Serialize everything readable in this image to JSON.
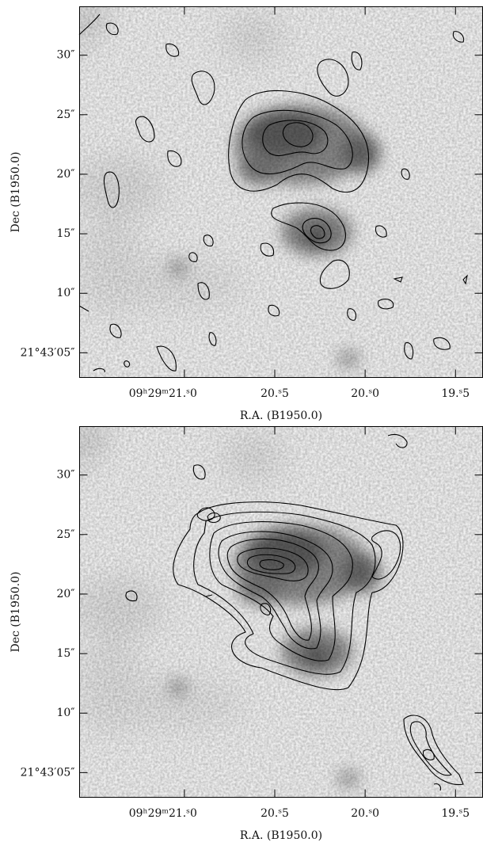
{
  "chart_data": [
    {
      "type": "image",
      "xlabel": "R.A. (B1950.0)",
      "ylabel": "Dec (B1950.0)",
      "xlim": [
        21.58,
        19.35
      ],
      "ylim": [
        2.93,
        34.07
      ],
      "xticks": [
        {
          "value": 21.0,
          "label": "09ʰ29ᵐ21.ˢ0"
        },
        {
          "value": 20.5,
          "label": "20.ˢ5"
        },
        {
          "value": 20.0,
          "label": "20.ˢ0"
        },
        {
          "value": 19.5,
          "label": "19.ˢ5"
        }
      ],
      "yticks": [
        {
          "value": 5,
          "label": "21°43′05″"
        },
        {
          "value": 10,
          "label": "10″"
        },
        {
          "value": 15,
          "label": "15″"
        },
        {
          "value": 20,
          "label": "20″"
        },
        {
          "value": 25,
          "label": "25″"
        },
        {
          "value": 30,
          "label": "30″"
        }
      ]
    },
    {
      "type": "image",
      "xlabel": "R.A. (B1950.0)",
      "ylabel": "Dec (B1950.0)",
      "xlim": [
        21.58,
        19.35
      ],
      "ylim": [
        2.93,
        34.07
      ],
      "xticks": [
        {
          "value": 21.0,
          "label": "09ʰ29ᵐ21.ˢ0"
        },
        {
          "value": 20.5,
          "label": "20.ˢ5"
        },
        {
          "value": 20.0,
          "label": "20.ˢ0"
        },
        {
          "value": 19.5,
          "label": "19.ˢ5"
        }
      ],
      "yticks": [
        {
          "value": 5,
          "label": "21°43′05″"
        },
        {
          "value": 10,
          "label": "10″"
        },
        {
          "value": 15,
          "label": "15″"
        },
        {
          "value": 20,
          "label": "20″"
        },
        {
          "value": 25,
          "label": "25″"
        },
        {
          "value": 30,
          "label": "30″"
        }
      ]
    }
  ]
}
